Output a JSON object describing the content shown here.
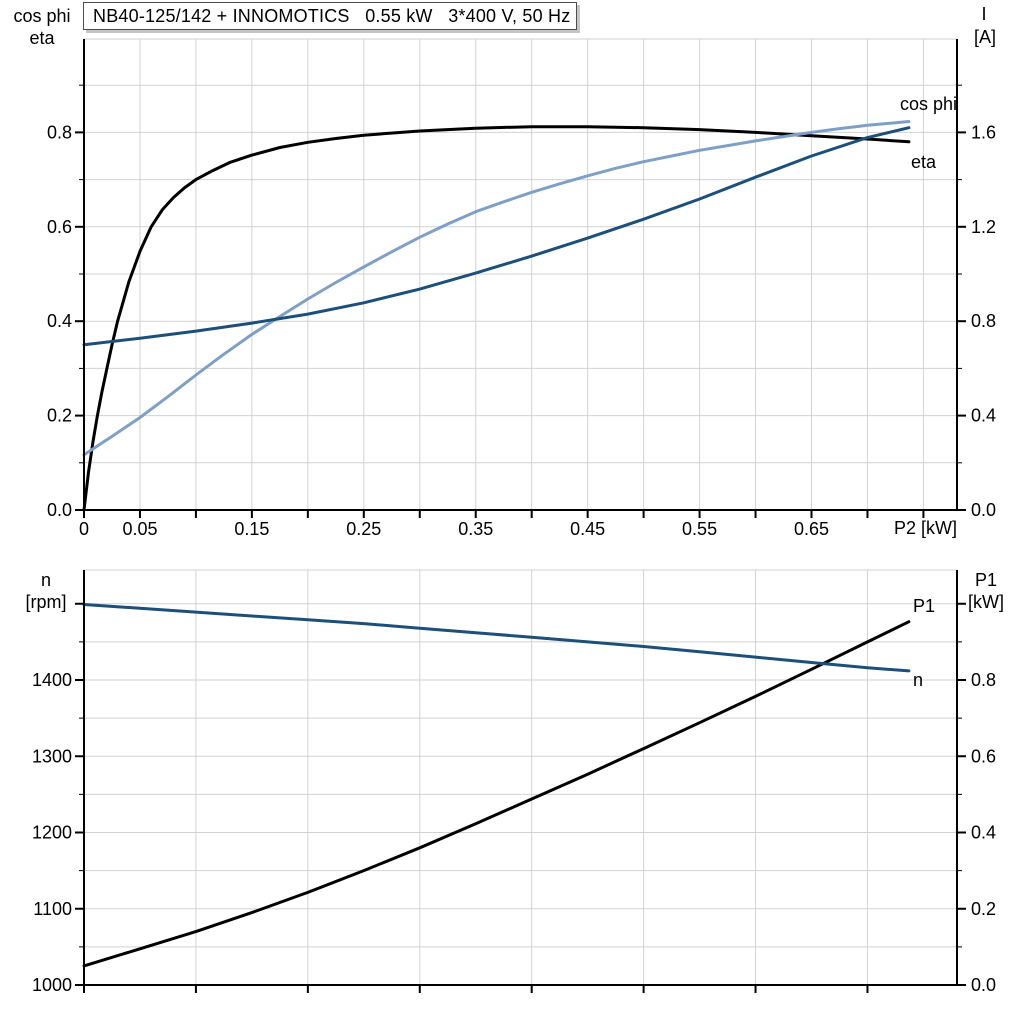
{
  "title": "NB40-125/142 + INNOMOTICS   0.55 kW   3*400 V, 50 Hz",
  "colors": {
    "dark_blue": "#1c4f7a",
    "light_blue": "#7fa0c6",
    "black": "#000000",
    "grid": "#d2d2d2",
    "axis": "#000000"
  },
  "chart_data": [
    {
      "type": "line",
      "x": {
        "title": "P2 [kW]",
        "min": 0,
        "max": 0.78,
        "grid": 0.05,
        "tick": 0.05,
        "labels": [
          {
            "v": 0,
            "t": "0"
          },
          {
            "v": 0.05,
            "t": "0.05"
          },
          {
            "v": 0.15,
            "t": "0.15"
          },
          {
            "v": 0.25,
            "t": "0.25"
          },
          {
            "v": 0.35,
            "t": "0.35"
          },
          {
            "v": 0.45,
            "t": "0.45"
          },
          {
            "v": 0.55,
            "t": "0.55"
          },
          {
            "v": 0.65,
            "t": "0.65"
          }
        ]
      },
      "y_left": {
        "title_lines": [
          "cos phi",
          "eta"
        ],
        "min": 0,
        "max": 1.0,
        "grid": 0.1,
        "tick_minor": 0.1,
        "tick_major": 0.2,
        "labels": [
          {
            "v": 0,
            "t": "0.0"
          },
          {
            "v": 0.2,
            "t": "0.2"
          },
          {
            "v": 0.4,
            "t": "0.4"
          },
          {
            "v": 0.6,
            "t": "0.6"
          },
          {
            "v": 0.8,
            "t": "0.8"
          }
        ]
      },
      "y_right": {
        "title_lines": [
          "I",
          "[A]"
        ],
        "min": 0,
        "max": 2.0,
        "tick_minor": 0.2,
        "tick_major": 0.4,
        "labels": [
          {
            "v": 0,
            "t": "0.0"
          },
          {
            "v": 0.4,
            "t": "0.4"
          },
          {
            "v": 0.8,
            "t": "0.8"
          },
          {
            "v": 1.2,
            "t": "1.2"
          },
          {
            "v": 1.6,
            "t": "1.6"
          }
        ]
      },
      "series": [
        {
          "name": "eta",
          "axis": "left",
          "color": "#000000",
          "label": "eta",
          "points": [
            [
              0,
              0
            ],
            [
              0.004,
              0.08
            ],
            [
              0.008,
              0.145
            ],
            [
              0.012,
              0.2
            ],
            [
              0.016,
              0.25
            ],
            [
              0.02,
              0.295
            ],
            [
              0.025,
              0.35
            ],
            [
              0.03,
              0.4
            ],
            [
              0.04,
              0.483
            ],
            [
              0.05,
              0.548
            ],
            [
              0.06,
              0.6
            ],
            [
              0.07,
              0.636
            ],
            [
              0.08,
              0.662
            ],
            [
              0.09,
              0.683
            ],
            [
              0.1,
              0.7
            ],
            [
              0.115,
              0.719
            ],
            [
              0.13,
              0.736
            ],
            [
              0.15,
              0.752
            ],
            [
              0.175,
              0.768
            ],
            [
              0.2,
              0.779
            ],
            [
              0.225,
              0.787
            ],
            [
              0.25,
              0.794
            ],
            [
              0.3,
              0.803
            ],
            [
              0.35,
              0.809
            ],
            [
              0.4,
              0.812
            ],
            [
              0.45,
              0.812
            ],
            [
              0.5,
              0.81
            ],
            [
              0.55,
              0.806
            ],
            [
              0.6,
              0.8
            ],
            [
              0.65,
              0.793
            ],
            [
              0.7,
              0.786
            ],
            [
              0.737,
              0.78
            ]
          ]
        },
        {
          "name": "cos phi",
          "axis": "left",
          "color": "#7fa0c6",
          "label": "cos phi",
          "points": [
            [
              0,
              0.117
            ],
            [
              0.025,
              0.156
            ],
            [
              0.05,
              0.196
            ],
            [
              0.075,
              0.24
            ],
            [
              0.1,
              0.286
            ],
            [
              0.125,
              0.33
            ],
            [
              0.15,
              0.372
            ],
            [
              0.175,
              0.41
            ],
            [
              0.2,
              0.447
            ],
            [
              0.225,
              0.482
            ],
            [
              0.25,
              0.515
            ],
            [
              0.275,
              0.547
            ],
            [
              0.3,
              0.578
            ],
            [
              0.325,
              0.606
            ],
            [
              0.35,
              0.632
            ],
            [
              0.375,
              0.653
            ],
            [
              0.4,
              0.673
            ],
            [
              0.425,
              0.691
            ],
            [
              0.45,
              0.708
            ],
            [
              0.475,
              0.724
            ],
            [
              0.5,
              0.738
            ],
            [
              0.525,
              0.75
            ],
            [
              0.55,
              0.762
            ],
            [
              0.575,
              0.772
            ],
            [
              0.6,
              0.782
            ],
            [
              0.625,
              0.791
            ],
            [
              0.65,
              0.8
            ],
            [
              0.675,
              0.808
            ],
            [
              0.7,
              0.815
            ],
            [
              0.737,
              0.823
            ]
          ]
        },
        {
          "name": "I",
          "axis": "right",
          "color": "#1c4f7a",
          "label": null,
          "points": [
            [
              0,
              0.7
            ],
            [
              0.05,
              0.728
            ],
            [
              0.1,
              0.758
            ],
            [
              0.15,
              0.792
            ],
            [
              0.2,
              0.83
            ],
            [
              0.25,
              0.878
            ],
            [
              0.3,
              0.936
            ],
            [
              0.35,
              1.004
            ],
            [
              0.4,
              1.076
            ],
            [
              0.45,
              1.152
            ],
            [
              0.5,
              1.232
            ],
            [
              0.55,
              1.318
            ],
            [
              0.6,
              1.41
            ],
            [
              0.65,
              1.5
            ],
            [
              0.7,
              1.578
            ],
            [
              0.737,
              1.62
            ]
          ]
        }
      ]
    },
    {
      "type": "line",
      "x": {
        "title": null,
        "min": 0,
        "max": 0.78,
        "grid": 0.1,
        "tick": 0.1,
        "labels": []
      },
      "y_left": {
        "title_lines": [
          "n",
          "[rpm]"
        ],
        "min": 1000,
        "max": 1544,
        "grid": 50,
        "tick_minor": 50,
        "tick_major": 100,
        "labels": [
          {
            "v": 1000,
            "t": "1000"
          },
          {
            "v": 1100,
            "t": "1100"
          },
          {
            "v": 1200,
            "t": "1200"
          },
          {
            "v": 1300,
            "t": "1300"
          },
          {
            "v": 1400,
            "t": "1400"
          }
        ]
      },
      "y_right": {
        "title_lines": [
          "P1",
          "[kW]"
        ],
        "min": 0,
        "max": 1.088,
        "tick_minor": 0.1,
        "tick_major": 0.2,
        "labels": [
          {
            "v": 0,
            "t": "0.0"
          },
          {
            "v": 0.2,
            "t": "0.2"
          },
          {
            "v": 0.4,
            "t": "0.4"
          },
          {
            "v": 0.6,
            "t": "0.6"
          },
          {
            "v": 0.8,
            "t": "0.8"
          }
        ]
      },
      "series": [
        {
          "name": "P1",
          "axis": "right",
          "color": "#000000",
          "label": "P1",
          "points": [
            [
              0,
              0.05
            ],
            [
              0.05,
              0.095
            ],
            [
              0.1,
              0.14
            ],
            [
              0.15,
              0.19
            ],
            [
              0.2,
              0.243
            ],
            [
              0.25,
              0.3
            ],
            [
              0.3,
              0.36
            ],
            [
              0.35,
              0.423
            ],
            [
              0.4,
              0.488
            ],
            [
              0.45,
              0.553
            ],
            [
              0.5,
              0.62
            ],
            [
              0.55,
              0.688
            ],
            [
              0.6,
              0.757
            ],
            [
              0.65,
              0.828
            ],
            [
              0.7,
              0.9
            ],
            [
              0.737,
              0.953
            ]
          ]
        },
        {
          "name": "n",
          "axis": "left",
          "color": "#1c4f7a",
          "label": "n",
          "points": [
            [
              0,
              1499
            ],
            [
              0.05,
              1494
            ],
            [
              0.1,
              1489
            ],
            [
              0.15,
              1484
            ],
            [
              0.2,
              1479
            ],
            [
              0.25,
              1474
            ],
            [
              0.3,
              1468
            ],
            [
              0.35,
              1462
            ],
            [
              0.4,
              1456
            ],
            [
              0.45,
              1450
            ],
            [
              0.5,
              1444
            ],
            [
              0.55,
              1437
            ],
            [
              0.6,
              1430
            ],
            [
              0.65,
              1423
            ],
            [
              0.7,
              1416
            ],
            [
              0.737,
              1412
            ]
          ]
        }
      ]
    }
  ]
}
